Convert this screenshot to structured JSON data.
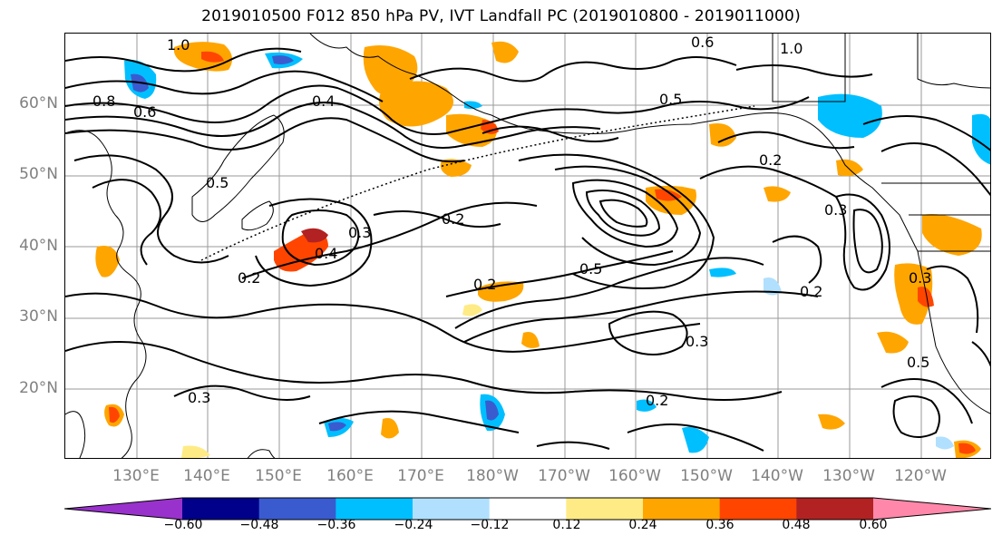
{
  "title": "2019010500 F012 850 hPa PV, IVT Landfall PC (2019010800 - 2019011000)",
  "lat_labels": [
    "60°N",
    "50°N",
    "40°N",
    "30°N",
    "20°N"
  ],
  "lon_labels": [
    "130°E",
    "140°E",
    "150°E",
    "160°E",
    "170°E",
    "180°W",
    "170°W",
    "160°W",
    "150°W",
    "140°W",
    "130°W",
    "120°W"
  ],
  "contour_labels": [
    "1.0",
    "0.8",
    "0.6",
    "0.4",
    "0.2",
    "0.3",
    "0.5",
    "0.2",
    "0.4",
    "0.3",
    "0.2",
    "0.5",
    "0.2",
    "0.3",
    "0.6",
    "1.0",
    "0.5",
    "0.2",
    "0.3",
    "0.3",
    "0.5",
    "0.2"
  ],
  "colorbar": {
    "ticks": [
      "−0.60",
      "−0.48",
      "−0.36",
      "−0.24",
      "−0.12",
      "0.12",
      "0.24",
      "0.36",
      "0.48",
      "0.60"
    ],
    "colors": [
      "#9932cc",
      "#00008b",
      "#3a5bcf",
      "#00bfff",
      "#b0e0fe",
      "#ffffff",
      "#ffeb85",
      "#ffa500",
      "#ff4500",
      "#b22222",
      "#ff88aa"
    ]
  }
}
